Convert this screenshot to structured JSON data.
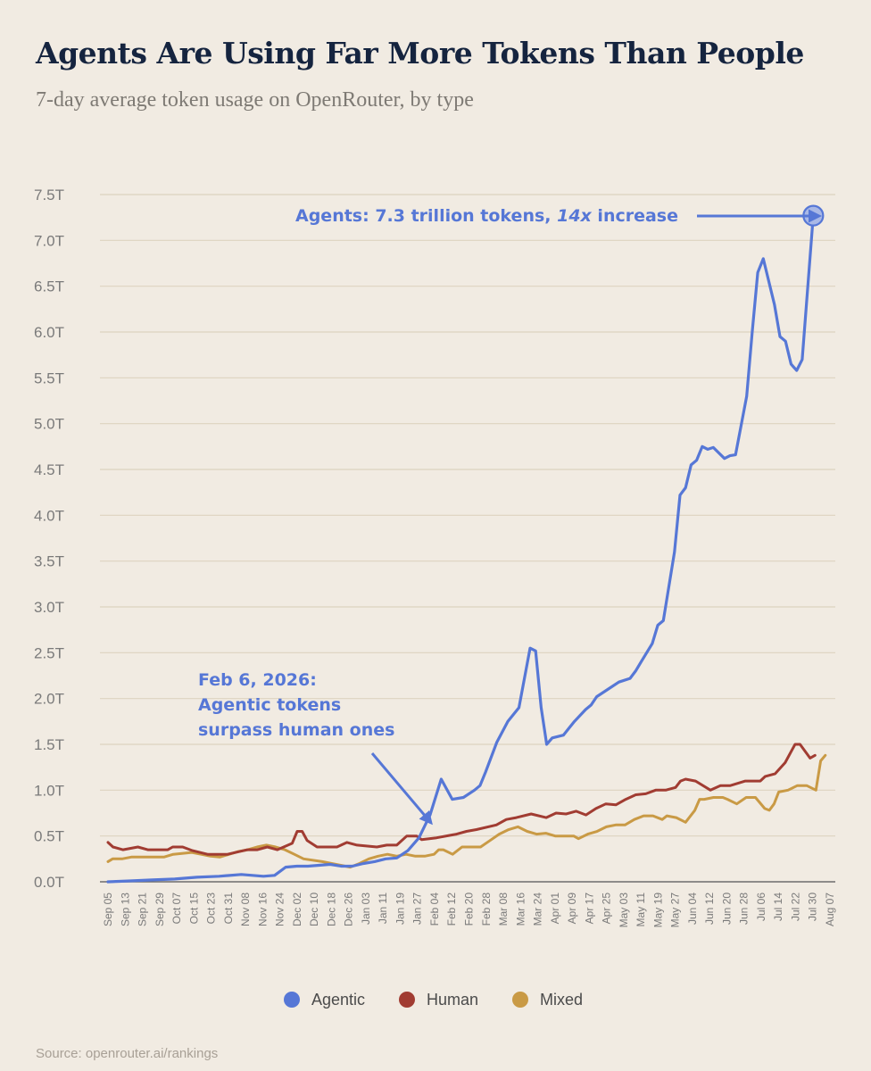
{
  "header": {
    "title": "Agents Are Using Far More Tokens Than People",
    "subtitle": "7-day average token usage on OpenRouter, by type"
  },
  "footer": {
    "source": "Source: openrouter.ai/rankings"
  },
  "colors": {
    "background": "#f1ebe2",
    "grid": "#ddd3c0",
    "axis_text": "#7a7a7a",
    "agentic": "#5677d6",
    "human": "#a13c32",
    "mixed": "#c99a45",
    "title": "#15243f"
  },
  "chart_data": {
    "type": "line",
    "ylim": [
      0,
      7.5
    ],
    "y_ticks": [
      "0.0T",
      "0.5T",
      "1.0T",
      "1.5T",
      "2.0T",
      "2.5T",
      "3.0T",
      "3.5T",
      "4.0T",
      "4.5T",
      "5.0T",
      "5.5T",
      "6.0T",
      "6.5T",
      "7.0T",
      "7.5T"
    ],
    "grid": true,
    "x_ticks": [
      "Sep 05",
      "Sep 13",
      "Sep 21",
      "Sep 29",
      "Oct 07",
      "Oct 15",
      "Oct 23",
      "Oct 31",
      "Nov 08",
      "Nov 16",
      "Nov 24",
      "Dec 02",
      "Dec 10",
      "Dec 18",
      "Dec 26",
      "Jan 03",
      "Jan 11",
      "Jan 19",
      "Jan 27",
      "Feb 04",
      "Feb 12",
      "Feb 20",
      "Feb 28",
      "Mar 08",
      "Mar 16",
      "Mar 24",
      "Apr 01",
      "Apr 09",
      "Apr 17",
      "Apr 25",
      "May 03",
      "May 11",
      "May 19",
      "May 27",
      "Jun 04",
      "Jun 12",
      "Jun 20",
      "Jun 28",
      "Jul 06",
      "Jul 14",
      "Jul 22",
      "Jul 30",
      "Aug 07"
    ],
    "legend_position": "bottom",
    "series": [
      {
        "name": "Agentic",
        "color": "#5677d6",
        "points": [
          [
            0,
            0.0
          ],
          [
            4,
            0.01
          ],
          [
            8,
            0.02
          ],
          [
            12,
            0.03
          ],
          [
            16,
            0.05
          ],
          [
            20,
            0.06
          ],
          [
            24,
            0.08
          ],
          [
            26,
            0.07
          ],
          [
            28,
            0.06
          ],
          [
            30,
            0.07
          ],
          [
            32,
            0.16
          ],
          [
            34,
            0.17
          ],
          [
            36,
            0.17
          ],
          [
            38,
            0.18
          ],
          [
            40,
            0.19
          ],
          [
            42,
            0.17
          ],
          [
            44,
            0.17
          ],
          [
            46,
            0.2
          ],
          [
            48,
            0.22
          ],
          [
            50,
            0.25
          ],
          [
            52,
            0.26
          ],
          [
            54,
            0.34
          ],
          [
            56,
            0.48
          ],
          [
            58,
            0.73
          ],
          [
            60,
            1.12
          ],
          [
            62,
            0.9
          ],
          [
            64,
            0.92
          ],
          [
            66,
            1.0
          ],
          [
            67,
            1.05
          ],
          [
            68,
            1.2
          ],
          [
            70,
            1.52
          ],
          [
            72,
            1.75
          ],
          [
            74,
            1.9
          ],
          [
            76,
            2.55
          ],
          [
            77,
            2.52
          ],
          [
            78,
            1.9
          ],
          [
            79,
            1.5
          ],
          [
            80,
            1.57
          ],
          [
            82,
            1.6
          ],
          [
            84,
            1.75
          ],
          [
            86,
            1.88
          ],
          [
            87,
            1.93
          ],
          [
            88,
            2.02
          ],
          [
            90,
            2.1
          ],
          [
            92,
            2.18
          ],
          [
            94,
            2.22
          ],
          [
            95,
            2.3
          ],
          [
            96,
            2.4
          ],
          [
            98,
            2.6
          ],
          [
            99,
            2.8
          ],
          [
            100,
            2.85
          ],
          [
            102,
            3.6
          ],
          [
            103,
            4.22
          ],
          [
            104,
            4.3
          ],
          [
            105,
            4.55
          ],
          [
            106,
            4.6
          ],
          [
            107,
            4.75
          ],
          [
            108,
            4.72
          ],
          [
            109,
            4.74
          ],
          [
            110,
            4.68
          ],
          [
            111,
            4.62
          ],
          [
            112,
            4.65
          ],
          [
            113,
            4.66
          ],
          [
            115,
            5.3
          ],
          [
            116,
            6.0
          ],
          [
            117,
            6.65
          ],
          [
            118,
            6.8
          ],
          [
            120,
            6.3
          ],
          [
            121,
            5.95
          ],
          [
            122,
            5.9
          ],
          [
            123,
            5.65
          ],
          [
            124,
            5.58
          ],
          [
            125,
            5.7
          ],
          [
            127,
            7.27
          ]
        ]
      },
      {
        "name": "Human",
        "color": "#a13c32",
        "points": [
          [
            0,
            0.43
          ],
          [
            1,
            0.38
          ],
          [
            3,
            0.35
          ],
          [
            6,
            0.38
          ],
          [
            8,
            0.35
          ],
          [
            10,
            0.35
          ],
          [
            12,
            0.35
          ],
          [
            13,
            0.38
          ],
          [
            15,
            0.38
          ],
          [
            17,
            0.34
          ],
          [
            20,
            0.3
          ],
          [
            24,
            0.3
          ],
          [
            28,
            0.35
          ],
          [
            30,
            0.35
          ],
          [
            32,
            0.38
          ],
          [
            34,
            0.35
          ],
          [
            37,
            0.42
          ],
          [
            38,
            0.55
          ],
          [
            39,
            0.55
          ],
          [
            40,
            0.45
          ],
          [
            42,
            0.38
          ],
          [
            46,
            0.38
          ],
          [
            48,
            0.43
          ],
          [
            50,
            0.4
          ],
          [
            54,
            0.38
          ],
          [
            56,
            0.4
          ],
          [
            58,
            0.4
          ],
          [
            60,
            0.5
          ],
          [
            62,
            0.5
          ],
          [
            63,
            0.46
          ],
          [
            66,
            0.48
          ],
          [
            70,
            0.52
          ],
          [
            72,
            0.55
          ],
          [
            74,
            0.57
          ],
          [
            78,
            0.62
          ],
          [
            80,
            0.68
          ],
          [
            82,
            0.7
          ],
          [
            85,
            0.74
          ],
          [
            88,
            0.7
          ],
          [
            90,
            0.75
          ],
          [
            92,
            0.74
          ],
          [
            94,
            0.77
          ],
          [
            96,
            0.73
          ],
          [
            98,
            0.8
          ],
          [
            100,
            0.85
          ],
          [
            102,
            0.84
          ],
          [
            104,
            0.9
          ],
          [
            106,
            0.95
          ],
          [
            108,
            0.96
          ],
          [
            110,
            1.0
          ],
          [
            112,
            1.0
          ],
          [
            114,
            1.03
          ],
          [
            115,
            1.1
          ],
          [
            116,
            1.12
          ],
          [
            118,
            1.1
          ],
          [
            121,
            1.0
          ],
          [
            123,
            1.05
          ],
          [
            125,
            1.05
          ],
          [
            128,
            1.1
          ],
          [
            131,
            1.1
          ],
          [
            132,
            1.15
          ],
          [
            134,
            1.18
          ],
          [
            136,
            1.3
          ],
          [
            138,
            1.5
          ],
          [
            139,
            1.5
          ],
          [
            141,
            1.35
          ],
          [
            142,
            1.38
          ]
        ]
      },
      {
        "name": "Mixed",
        "color": "#c99a45",
        "points": [
          [
            0,
            0.22
          ],
          [
            1,
            0.25
          ],
          [
            3,
            0.25
          ],
          [
            5,
            0.27
          ],
          [
            10,
            0.27
          ],
          [
            12,
            0.27
          ],
          [
            14,
            0.3
          ],
          [
            18,
            0.32
          ],
          [
            20,
            0.3
          ],
          [
            22,
            0.28
          ],
          [
            24,
            0.27
          ],
          [
            28,
            0.33
          ],
          [
            30,
            0.35
          ],
          [
            32,
            0.38
          ],
          [
            34,
            0.4
          ],
          [
            36,
            0.38
          ],
          [
            38,
            0.35
          ],
          [
            40,
            0.3
          ],
          [
            42,
            0.25
          ],
          [
            46,
            0.22
          ],
          [
            50,
            0.18
          ],
          [
            52,
            0.16
          ],
          [
            54,
            0.2
          ],
          [
            56,
            0.25
          ],
          [
            58,
            0.28
          ],
          [
            60,
            0.3
          ],
          [
            62,
            0.28
          ],
          [
            64,
            0.3
          ],
          [
            66,
            0.28
          ],
          [
            68,
            0.28
          ],
          [
            70,
            0.3
          ],
          [
            71,
            0.35
          ],
          [
            72,
            0.35
          ],
          [
            74,
            0.3
          ],
          [
            76,
            0.38
          ],
          [
            78,
            0.38
          ],
          [
            80,
            0.38
          ],
          [
            82,
            0.45
          ],
          [
            84,
            0.52
          ],
          [
            86,
            0.57
          ],
          [
            88,
            0.6
          ],
          [
            90,
            0.55
          ],
          [
            92,
            0.52
          ],
          [
            94,
            0.53
          ],
          [
            96,
            0.5
          ],
          [
            98,
            0.5
          ],
          [
            100,
            0.5
          ],
          [
            101,
            0.47
          ],
          [
            103,
            0.52
          ],
          [
            105,
            0.55
          ],
          [
            107,
            0.6
          ],
          [
            109,
            0.62
          ],
          [
            111,
            0.62
          ],
          [
            113,
            0.68
          ],
          [
            115,
            0.72
          ],
          [
            117,
            0.72
          ],
          [
            119,
            0.68
          ],
          [
            120,
            0.72
          ],
          [
            122,
            0.7
          ],
          [
            124,
            0.65
          ],
          [
            126,
            0.78
          ],
          [
            127,
            0.9
          ],
          [
            128,
            0.9
          ],
          [
            130,
            0.92
          ],
          [
            132,
            0.92
          ],
          [
            133,
            0.9
          ],
          [
            135,
            0.85
          ],
          [
            137,
            0.92
          ],
          [
            139,
            0.92
          ],
          [
            141,
            0.8
          ],
          [
            142,
            0.78
          ],
          [
            143,
            0.85
          ],
          [
            144,
            0.98
          ],
          [
            146,
            1.0
          ],
          [
            148,
            1.05
          ],
          [
            150,
            1.05
          ],
          [
            152,
            1.0
          ],
          [
            153,
            1.32
          ],
          [
            154,
            1.38
          ]
        ]
      }
    ],
    "annotations": [
      {
        "id": "peak",
        "lines": [
          {
            "segments": [
              {
                "text": "Agents: 7.3 trillion tokens, "
              },
              {
                "text": "14x",
                "italic": true
              },
              {
                "text": " increase"
              }
            ]
          }
        ]
      },
      {
        "id": "crossover",
        "lines": [
          {
            "segments": [
              {
                "text": "Feb 6, 2026:"
              }
            ]
          },
          {
            "segments": [
              {
                "text": "Agentic tokens"
              }
            ]
          },
          {
            "segments": [
              {
                "text": "surpass human ones"
              }
            ]
          }
        ]
      }
    ]
  }
}
